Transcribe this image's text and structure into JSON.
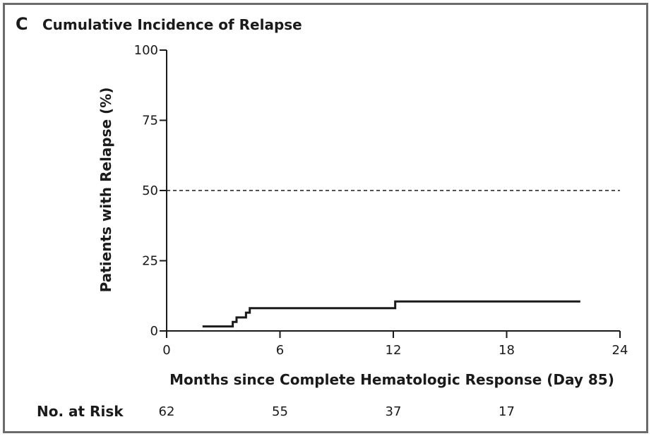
{
  "panel": {
    "letter": "C",
    "title": "Cumulative Incidence of Relapse"
  },
  "chart_data": {
    "type": "line",
    "title": "Cumulative Incidence of Relapse",
    "xlabel": "Months since Complete Hematologic Response (Day 85)",
    "ylabel": "Patients with Relapse (%)",
    "xlim": [
      0,
      24
    ],
    "ylim": [
      0,
      100
    ],
    "x_ticks": [
      "0",
      "6",
      "12",
      "18",
      "24"
    ],
    "y_ticks": [
      "0",
      "25",
      "50",
      "75",
      "100"
    ],
    "reference_line": {
      "y": 50,
      "style": "dashed"
    },
    "grid": false,
    "series": [
      {
        "step": true,
        "x": [
          1.9,
          3.5,
          3.7,
          4.2,
          4.4,
          12.1,
          21.9
        ],
        "y": [
          1.6,
          3.2,
          4.8,
          6.5,
          8.1,
          10.5,
          10.5
        ]
      }
    ],
    "risk_table": {
      "label": "No. at Risk",
      "x": [
        0,
        6,
        12,
        18
      ],
      "values": [
        "62",
        "55",
        "37",
        "17"
      ]
    }
  }
}
